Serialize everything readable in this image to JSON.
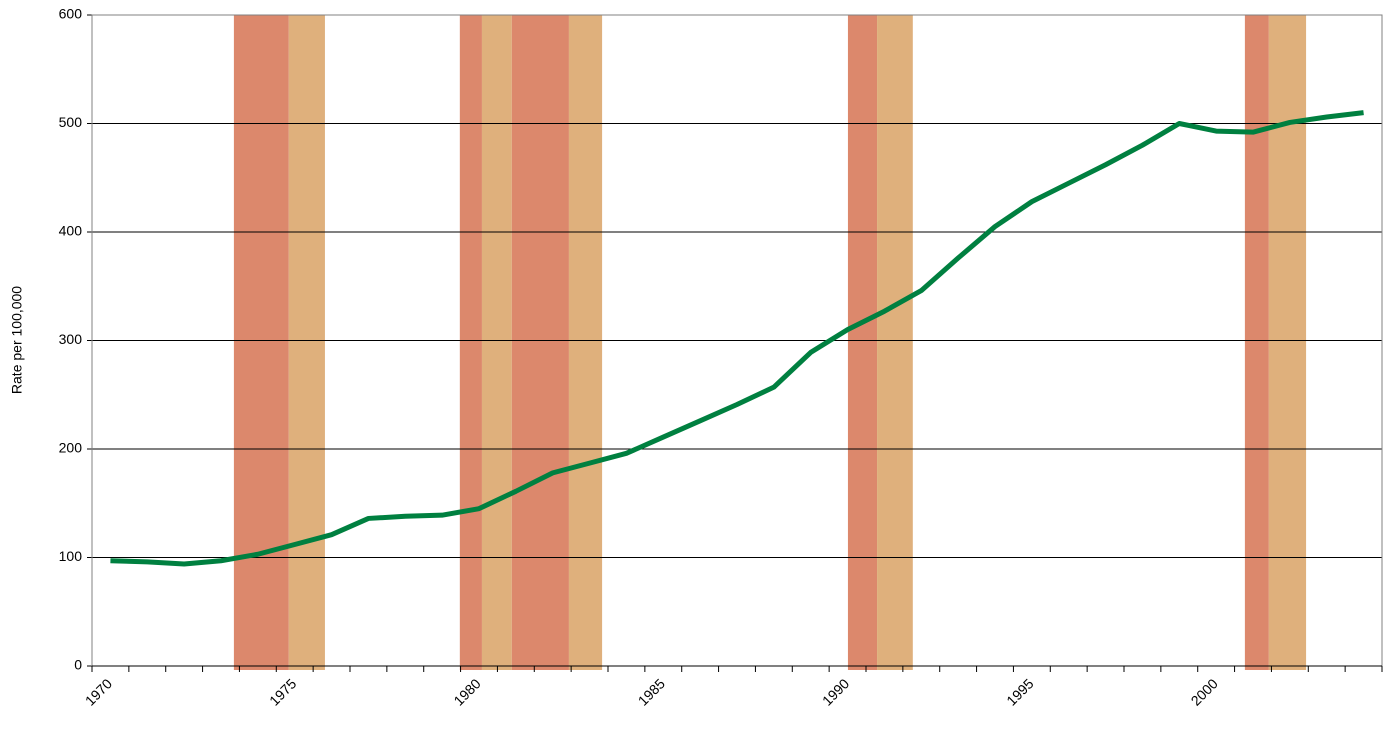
{
  "chart_data": {
    "type": "line",
    "y_label": "Rate per 100,000",
    "categories": [
      "1970",
      null,
      null,
      null,
      null,
      "1975",
      null,
      null,
      null,
      null,
      "1980",
      null,
      null,
      null,
      null,
      "1985",
      null,
      null,
      null,
      null,
      "1990",
      null,
      null,
      null,
      null,
      "1995",
      null,
      null,
      null,
      null,
      "2000",
      null,
      null,
      null,
      null
    ],
    "series": [
      {
        "color": "#008040",
        "values": [
          97,
          96,
          94,
          97,
          103,
          112,
          121,
          136,
          138,
          139,
          145,
          161,
          178,
          187,
          196,
          211,
          226,
          241,
          257,
          289,
          310,
          327,
          346,
          376,
          405,
          428,
          445,
          462,
          480,
          500,
          493,
          492,
          501,
          506,
          510
        ]
      }
    ],
    "bands": [
      {
        "start": 1973.85,
        "end": 1975.34,
        "color": "#dc886c"
      },
      {
        "start": 1975.34,
        "end": 1976.32,
        "color": "#dfb07c"
      },
      {
        "start": 1979.98,
        "end": 1980.58,
        "color": "#dc886c"
      },
      {
        "start": 1980.58,
        "end": 1981.39,
        "color": "#dfb07c"
      },
      {
        "start": 1981.39,
        "end": 1982.94,
        "color": "#dc886c"
      },
      {
        "start": 1982.94,
        "end": 1983.84,
        "color": "#dfb07c"
      },
      {
        "start": 1990.51,
        "end": 1991.3,
        "color": "#dc886c"
      },
      {
        "start": 1991.3,
        "end": 1992.27,
        "color": "#dfb07c"
      },
      {
        "start": 2001.28,
        "end": 2001.93,
        "color": "#dc886c"
      },
      {
        "start": 2001.93,
        "end": 2002.94,
        "color": "#dfb07c"
      }
    ],
    "band_origin": 1970,
    "ylim": [
      0,
      600
    ],
    "yticks": [
      0,
      100,
      200,
      300,
      400,
      500,
      600
    ],
    "grid": true
  }
}
